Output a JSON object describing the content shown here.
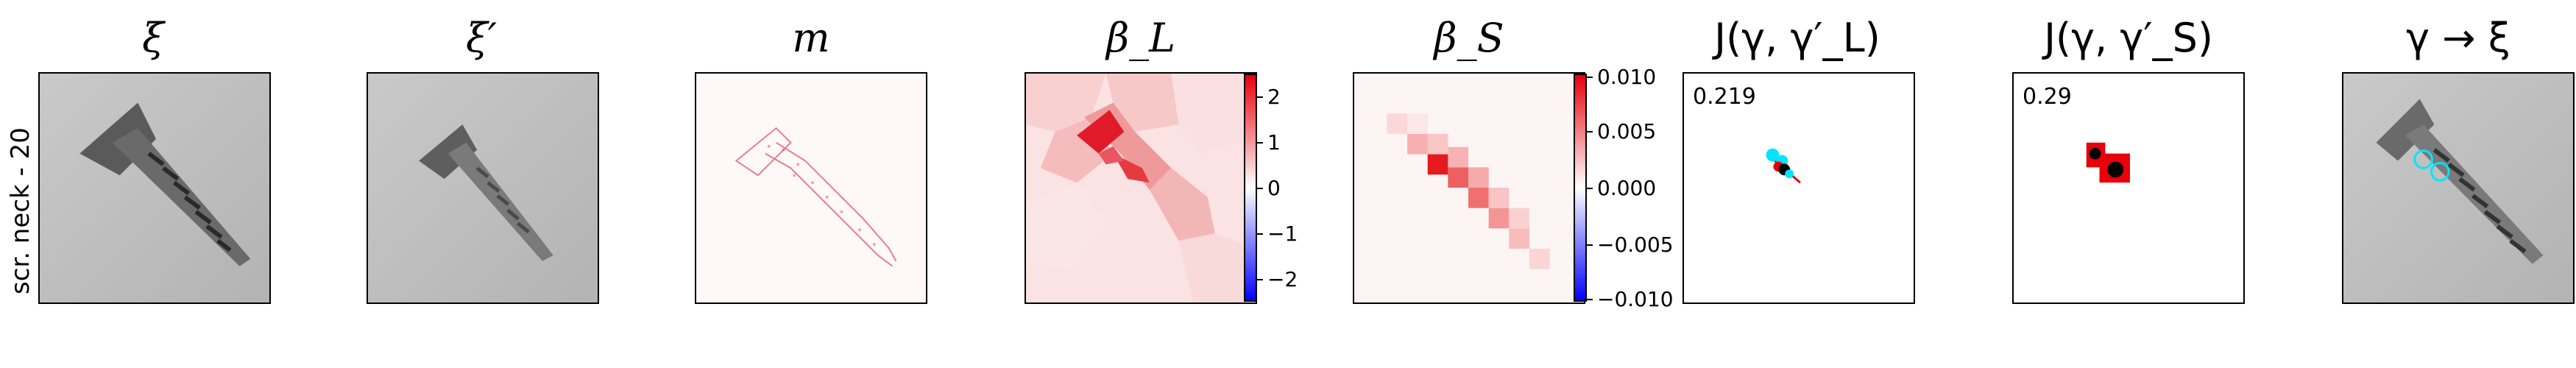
{
  "row_label": "scr. neck - 20",
  "panels": [
    {
      "title": "ξ",
      "kind": "photo"
    },
    {
      "title": "ξ′",
      "kind": "photo"
    },
    {
      "title": "m",
      "kind": "mask"
    },
    {
      "title": "β_L",
      "kind": "heat",
      "colorbar_ticks": [
        "2",
        "1",
        "0",
        "−1",
        "−2"
      ]
    },
    {
      "title": "β_S",
      "kind": "heat",
      "colorbar_ticks": [
        "0.010",
        "0.005",
        "0.000",
        "−0.005",
        "−0.010"
      ]
    },
    {
      "title": "J(γ, γ′_L)",
      "kind": "points",
      "annotation": "0.219"
    },
    {
      "title": "J(γ, γ′_S)",
      "kind": "points",
      "annotation": "0.29"
    },
    {
      "title": "γ → ξ",
      "kind": "photo-overlay"
    }
  ],
  "colors": {
    "red": "#e8000b",
    "blue": "#0000ff",
    "cyan": "#00e5ff",
    "gray_bg": "#bdbdbd"
  }
}
